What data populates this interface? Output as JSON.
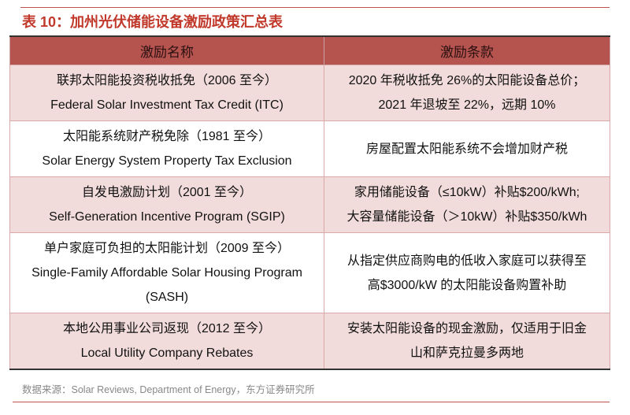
{
  "title": "表 10：加州光伏储能设备激励政策汇总表",
  "headers": [
    "激励名称",
    "激励条款"
  ],
  "rows": [
    {
      "name_cn": "联邦太阳能投资税收抵免（2006 至今）",
      "name_en": "Federal Solar Investment Tax Credit (ITC)",
      "terms": [
        "2020 年税收抵免 26%的太阳能设备总价；",
        "2021 年退坡至 22%，远期 10%"
      ]
    },
    {
      "name_cn": "太阳能系统财产税免除（1981 至今）",
      "name_en": "Solar Energy System Property Tax Exclusion",
      "terms": [
        "房屋配置太阳能系统不会增加财产税"
      ]
    },
    {
      "name_cn": "自发电激励计划（2001 至今）",
      "name_en": "Self-Generation Incentive Program (SGIP)",
      "terms": [
        "家用储能设备（≤10kW）补贴$200/kWh;",
        "大容量储能设备（＞10kW）补贴$350/kWh"
      ]
    },
    {
      "name_cn": "单户家庭可负担的太阳能计划（2009 至今）",
      "name_en": "Single-Family Affordable Solar Housing Program (SASH)",
      "terms": [
        "从指定供应商购电的低收入家庭可以获得至",
        "高$3000/kW 的太阳能设备购置补助"
      ]
    },
    {
      "name_cn": "本地公用事业公司返现（2012 至今）",
      "name_en": "Local Utility Company Rebates",
      "terms": [
        "安装太阳能设备的现金激励，仅适用于旧金",
        "山和萨克拉曼多两地"
      ]
    }
  ],
  "source": "数据来源：Solar Reviews, Department of Energy，东方证券研究所",
  "colors": {
    "header_bg": "#b5534f",
    "row_pink": "#f2dcdb",
    "title": "#c0392b"
  }
}
